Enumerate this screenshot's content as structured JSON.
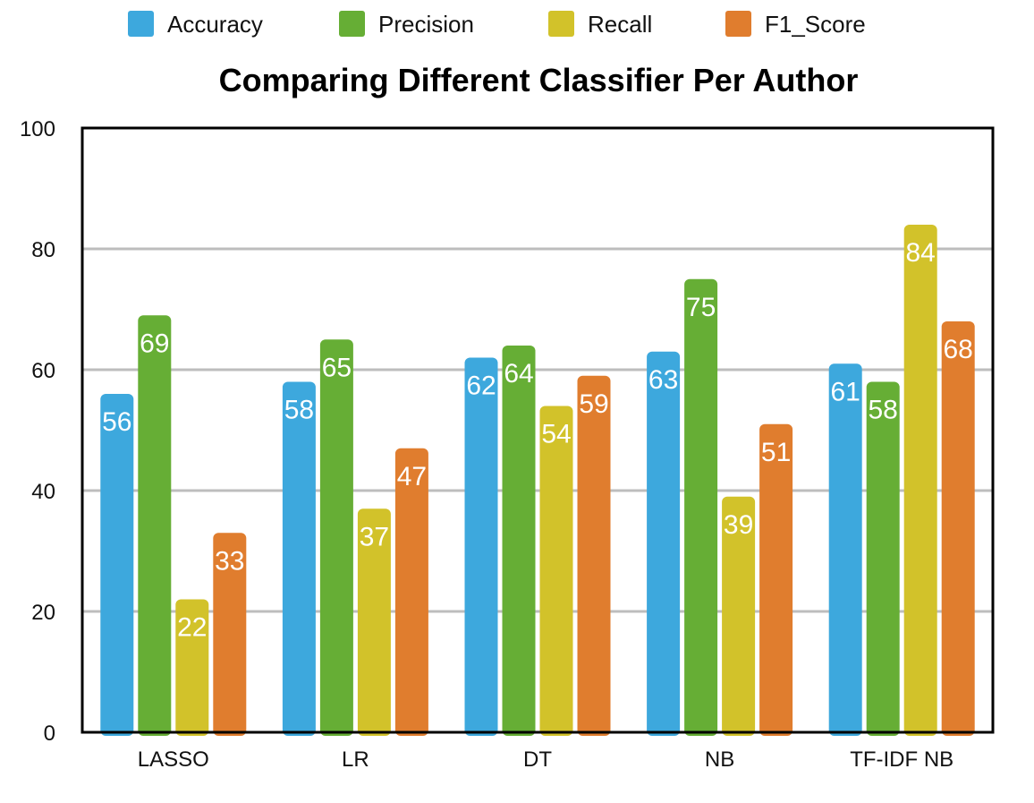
{
  "chart_data": {
    "type": "bar",
    "title": "Comparing Different Classifier Per Author",
    "xlabel": "",
    "ylabel": "",
    "categories": [
      "LASSO",
      "LR",
      "DT",
      "NB",
      "TF-IDF NB"
    ],
    "series": [
      {
        "name": "Accuracy",
        "color": "#3DA8DD",
        "values": [
          56,
          58,
          62,
          63,
          61
        ]
      },
      {
        "name": "Precision",
        "color": "#66AE35",
        "values": [
          69,
          65,
          64,
          75,
          58
        ]
      },
      {
        "name": "Recall",
        "color": "#D2C22A",
        "values": [
          22,
          37,
          54,
          39,
          84
        ]
      },
      {
        "name": "F1_Score",
        "color": "#E07D2E",
        "values": [
          33,
          47,
          59,
          51,
          68
        ]
      }
    ],
    "ylim": [
      0,
      100
    ],
    "yticks": [
      0,
      20,
      40,
      60,
      80,
      100
    ],
    "grid": true,
    "legend_position": "top"
  }
}
